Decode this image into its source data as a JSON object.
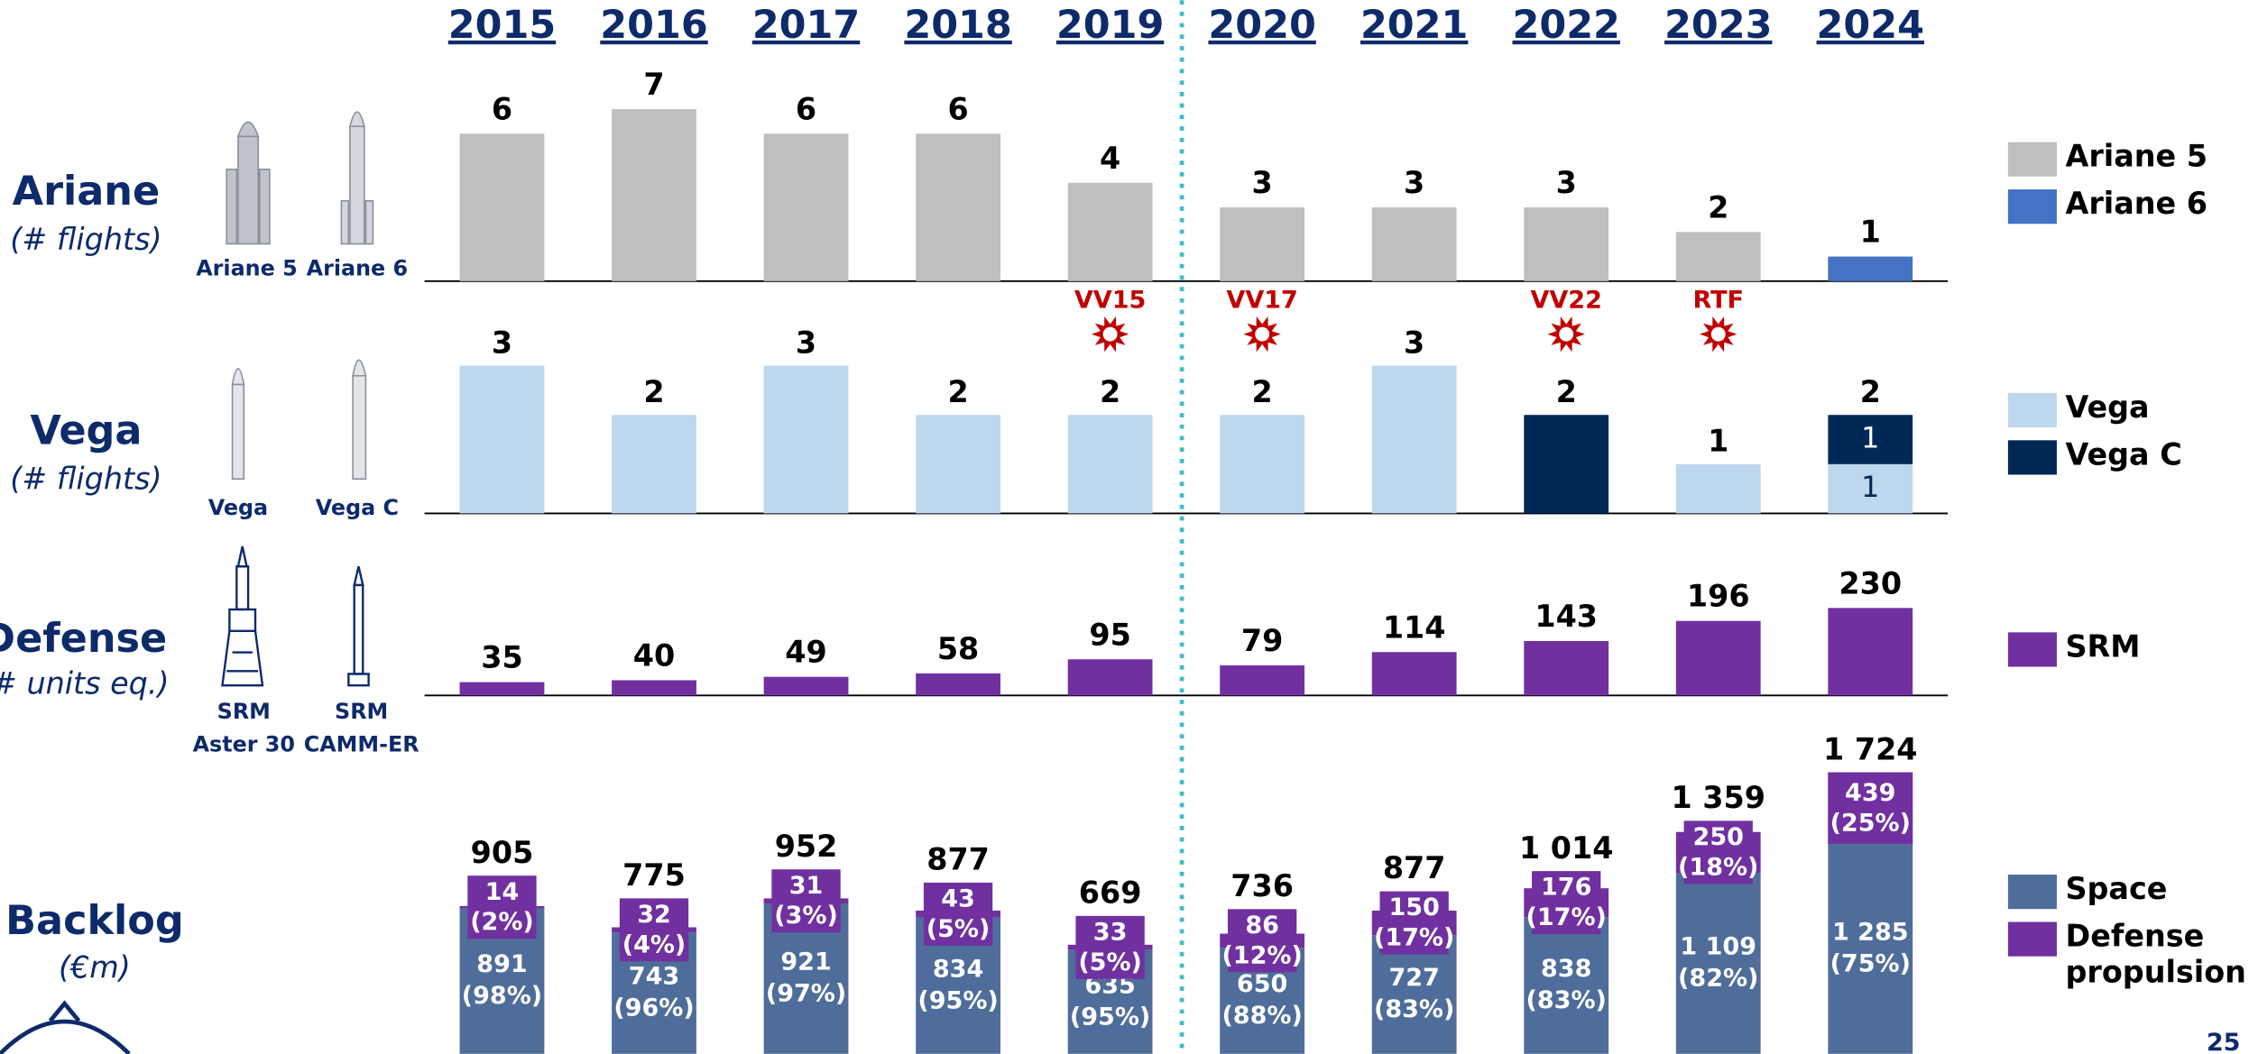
{
  "years": [
    "2015",
    "2016",
    "2017",
    "2018",
    "2019",
    "2020",
    "2021",
    "2022",
    "2023",
    "2024"
  ],
  "vehicle_labels": [
    [
      "Ariane 5",
      "Ariane 6"
    ],
    [
      "Vega",
      "Vega C"
    ],
    [
      "SRM",
      "Aster 30",
      "SRM",
      "CAMM-ER"
    ]
  ],
  "events": [
    {
      "label": "VV15",
      "year": "2019"
    },
    {
      "label": "VV17",
      "year": "2020"
    },
    {
      "label": "VV22",
      "year": "2022"
    },
    {
      "label": "RTF",
      "year": "2023"
    }
  ],
  "page_number": "25",
  "chart_data": [
    {
      "type": "bar",
      "title": "Ariane",
      "subtitle": "(# flights)",
      "series": [
        {
          "name": "Ariane 5",
          "color": "#bfbfbf",
          "values": [
            6,
            7,
            6,
            6,
            4,
            3,
            3,
            3,
            2,
            null
          ]
        },
        {
          "name": "Ariane 6",
          "color": "#4472c4",
          "values": [
            null,
            null,
            null,
            null,
            null,
            null,
            null,
            null,
            null,
            1
          ]
        }
      ],
      "ylim": [
        0,
        7
      ]
    },
    {
      "type": "stacked_bar",
      "title": "Vega",
      "subtitle": "(# flights)",
      "series": [
        {
          "name": "Vega",
          "color": "#bdd7ee",
          "values": [
            3,
            2,
            3,
            2,
            2,
            2,
            3,
            null,
            1,
            1
          ]
        },
        {
          "name": "Vega C",
          "color": "#002855",
          "values": [
            null,
            null,
            null,
            null,
            null,
            null,
            null,
            2,
            null,
            1
          ]
        }
      ],
      "totals": [
        3,
        2,
        3,
        2,
        2,
        2,
        3,
        2,
        1,
        2
      ],
      "ylim": [
        0,
        3
      ]
    },
    {
      "type": "bar",
      "title": "Defense",
      "subtitle": "(# units eq.)",
      "series": [
        {
          "name": "SRM",
          "color": "#7030a0",
          "values": [
            35,
            40,
            49,
            58,
            95,
            79,
            114,
            143,
            196,
            230
          ]
        }
      ],
      "ylim": [
        0,
        230
      ]
    },
    {
      "type": "stacked_bar",
      "title": "Backlog",
      "subtitle": "(€m)",
      "series": [
        {
          "name": "Space",
          "color": "#4f6d9a",
          "values": [
            891,
            743,
            921,
            834,
            635,
            650,
            727,
            838,
            1109,
            1285
          ],
          "value_labels": [
            "891",
            "743",
            "921",
            "834",
            "635",
            "650",
            "727",
            "838",
            "1 109",
            "1 285"
          ],
          "percent_labels": [
            "(98%)",
            "(96%)",
            "(97%)",
            "(95%)",
            "(95%)",
            "(88%)",
            "(83%)",
            "(83%)",
            "(82%)",
            "(75%)"
          ]
        },
        {
          "name": "Defense propulsion",
          "color": "#7030a0",
          "values": [
            14,
            32,
            31,
            43,
            33,
            86,
            150,
            176,
            250,
            439
          ],
          "percent_labels": [
            "(2%)",
            "(4%)",
            "(3%)",
            "(5%)",
            "(5%)",
            "(12%)",
            "(17%)",
            "(17%)",
            "(18%)",
            "(25%)"
          ]
        }
      ],
      "totals": [
        905,
        775,
        952,
        877,
        669,
        736,
        877,
        1014,
        1359,
        1724
      ],
      "totals_labels": [
        "905",
        "775",
        "952",
        "877",
        "669",
        "736",
        "877",
        "1 014",
        "1 359",
        "1 724"
      ],
      "ylim": [
        0,
        1800
      ]
    }
  ]
}
